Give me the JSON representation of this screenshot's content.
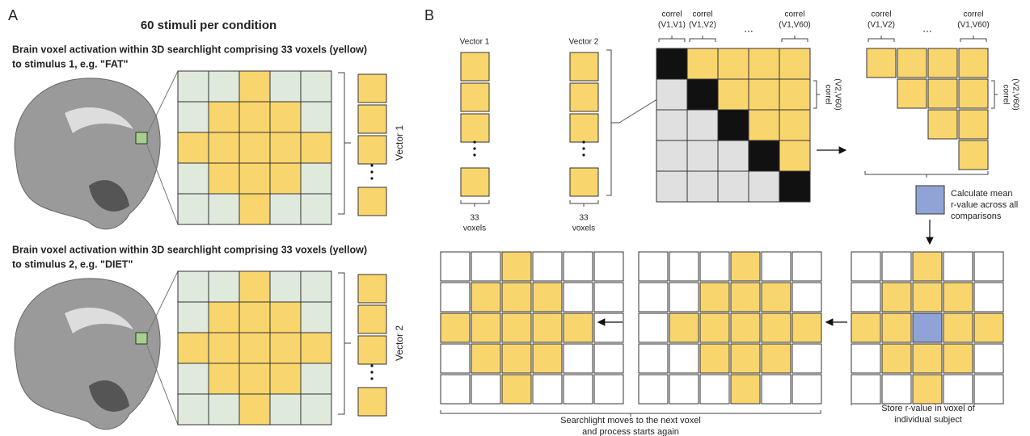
{
  "panel_a": {
    "label": "A",
    "title": "60 stimuli per condition",
    "stimulus_1": {
      "caption": [
        "Brain voxel activation within 3D searchlight comprising 33 voxels (yellow)",
        "to stimulus 1, e.g. \"FAT\""
      ],
      "vector": "Vector 1"
    },
    "stimulus_2": {
      "caption": [
        "Brain voxel activation within 3D searchlight comprising 33 voxels (yellow)",
        "to stimulus 2, e.g. \"DIET\""
      ],
      "vector": "Vector 2"
    }
  },
  "panel_b": {
    "label": "B",
    "vectors": [
      {
        "name": "Vector 1",
        "size": [
          "33",
          "voxels"
        ]
      },
      {
        "name": "Vector 2",
        "size": [
          "33",
          "voxels"
        ]
      }
    ],
    "ellipsis": "...",
    "matrix_headers": [
      [
        "correl",
        "(V1,V1)"
      ],
      [
        "correl",
        "(V1,V2)"
      ],
      [
        "correl",
        "(V1,V60)"
      ]
    ],
    "matrix_side": [
      "correl",
      "(V2,V60)"
    ],
    "reduced_headers": [
      [
        "correl",
        "(V1,V2)"
      ],
      [
        "correl",
        "(V1,V60)"
      ]
    ],
    "reduced_side": [
      "correl",
      "(V2,V60)"
    ],
    "mean_note": [
      "Calculate mean",
      "r-value across all",
      "comparisons"
    ],
    "store_note": [
      "Store r-value in voxel of",
      "individual subject"
    ],
    "move_note": [
      "Searchlight moves to the next voxel",
      "and process starts again"
    ]
  }
}
